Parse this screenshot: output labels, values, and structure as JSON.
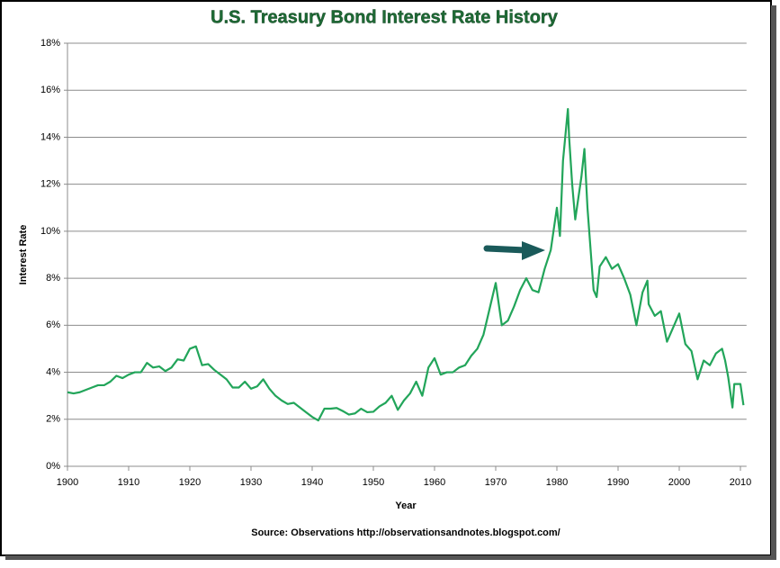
{
  "chart_data": {
    "type": "line",
    "title": "U.S. Treasury Bond Interest Rate History",
    "x_label": "Year",
    "y_label": "Interest Rate",
    "source": "Source: Observations  http://observationsandnotes.blogspot.com/",
    "color": "#22a55a",
    "grid": true,
    "xlim": [
      1900,
      2011
    ],
    "ylim": [
      0,
      18
    ],
    "xticks": [
      1900,
      1910,
      1920,
      1930,
      1940,
      1950,
      1960,
      1970,
      1980,
      1990,
      2000,
      2010
    ],
    "yticks": [
      {
        "value": 0,
        "label": "0%"
      },
      {
        "value": 2,
        "label": "2%"
      },
      {
        "value": 4,
        "label": "4%"
      },
      {
        "value": 6,
        "label": "6%"
      },
      {
        "value": 8,
        "label": "8%"
      },
      {
        "value": 10,
        "label": "10%"
      },
      {
        "value": 12,
        "label": "12%"
      },
      {
        "value": 14,
        "label": "14%"
      },
      {
        "value": 16,
        "label": "16%"
      },
      {
        "value": 18,
        "label": "18%"
      }
    ],
    "x": [
      1900,
      1901,
      1902,
      1903,
      1904,
      1905,
      1906,
      1907,
      1908,
      1909,
      1910,
      1911,
      1912,
      1913,
      1914,
      1915,
      1916,
      1917,
      1918,
      1919,
      1920,
      1921,
      1922,
      1923,
      1924,
      1925,
      1926,
      1927,
      1928,
      1929,
      1930,
      1931,
      1932,
      1933,
      1934,
      1935,
      1936,
      1937,
      1938,
      1939,
      1940,
      1941,
      1942,
      1943,
      1944,
      1945,
      1946,
      1947,
      1948,
      1949,
      1950,
      1951,
      1952,
      1953,
      1953.5,
      1954,
      1955,
      1956,
      1957,
      1958,
      1959,
      1960,
      1961,
      1962,
      1963,
      1964,
      1965,
      1966,
      1967,
      1968,
      1969,
      1970,
      1971,
      1972,
      1973,
      1974,
      1975,
      1976,
      1977,
      1978,
      1979,
      1980,
      1980.5,
      1981,
      1981.8,
      1982,
      1982.5,
      1983,
      1984,
      1984.5,
      1985,
      1986,
      1986.5,
      1987,
      1988,
      1989,
      1990,
      1991,
      1992,
      1993,
      1994,
      1994.8,
      1995,
      1996,
      1997,
      1998,
      1999,
      2000,
      2001,
      2002,
      2003,
      2004,
      2005,
      2006,
      2007,
      2007.5,
      2008,
      2008.7,
      2009,
      2010,
      2010.5
    ],
    "values": [
      3.15,
      3.1,
      3.15,
      3.25,
      3.35,
      3.45,
      3.45,
      3.6,
      3.85,
      3.75,
      3.9,
      4.0,
      4.0,
      4.4,
      4.2,
      4.25,
      4.05,
      4.2,
      4.55,
      4.5,
      5.0,
      5.1,
      4.3,
      4.35,
      4.1,
      3.9,
      3.7,
      3.35,
      3.35,
      3.6,
      3.3,
      3.4,
      3.7,
      3.3,
      3.0,
      2.8,
      2.65,
      2.7,
      2.5,
      2.3,
      2.1,
      1.95,
      2.45,
      2.45,
      2.48,
      2.35,
      2.2,
      2.25,
      2.45,
      2.3,
      2.32,
      2.55,
      2.7,
      3.0,
      2.7,
      2.4,
      2.8,
      3.1,
      3.6,
      3.0,
      4.2,
      4.6,
      3.9,
      4.0,
      4.0,
      4.2,
      4.3,
      4.7,
      5.0,
      5.6,
      6.7,
      7.8,
      6.0,
      6.2,
      6.8,
      7.5,
      8.0,
      7.5,
      7.4,
      8.4,
      9.2,
      11.0,
      9.8,
      13.0,
      15.2,
      14.0,
      12.0,
      10.5,
      12.3,
      13.5,
      11.0,
      7.5,
      7.2,
      8.5,
      8.9,
      8.4,
      8.6,
      8.0,
      7.3,
      6.0,
      7.4,
      7.9,
      6.9,
      6.4,
      6.6,
      5.3,
      5.9,
      6.5,
      5.2,
      4.9,
      3.7,
      4.5,
      4.3,
      4.8,
      5.0,
      4.5,
      3.8,
      2.5,
      3.5,
      3.5,
      2.6
    ]
  }
}
